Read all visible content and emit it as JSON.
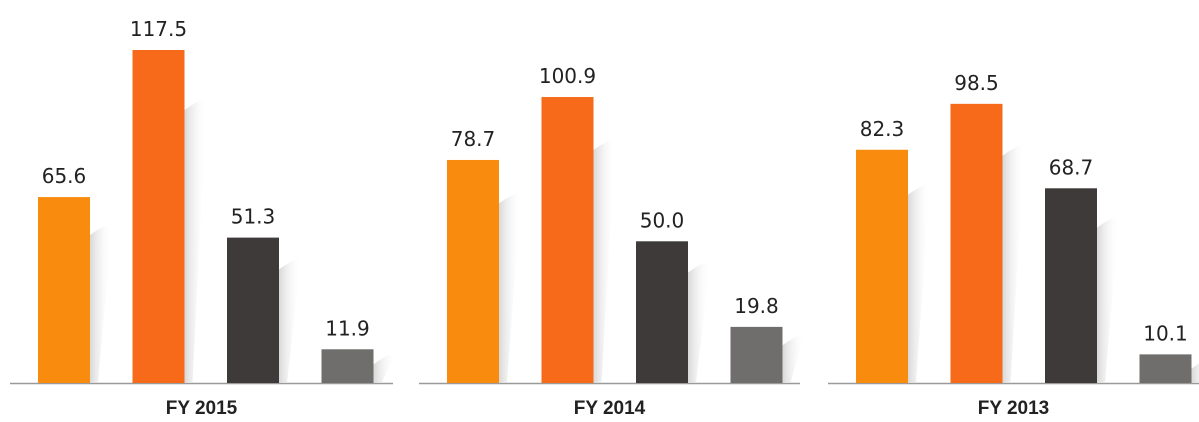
{
  "chart_data": [
    {
      "type": "bar",
      "title": "FY 2015",
      "categories": [
        null,
        null,
        null,
        null
      ],
      "values": [
        65.6,
        117.5,
        51.3,
        11.9
      ],
      "colors": [
        "#f98b0e",
        "#f66a19",
        "#3d3a39",
        "#6f6e6c"
      ]
    },
    {
      "type": "bar",
      "title": "FY 2014",
      "categories": [
        null,
        null,
        null,
        null
      ],
      "values": [
        78.7,
        100.9,
        50.0,
        19.8
      ],
      "value_labels": [
        "78.7",
        "100.9",
        "50.0",
        "19.8"
      ],
      "colors": [
        "#f98b0e",
        "#f66a19",
        "#3d3a39",
        "#6f6e6c"
      ]
    },
    {
      "type": "bar",
      "title": "FY 2013",
      "categories": [
        null,
        null,
        null,
        null
      ],
      "values": [
        82.3,
        98.5,
        68.7,
        10.1
      ],
      "colors": [
        "#f98b0e",
        "#f66a19",
        "#3d3a39",
        "#6f6e6c"
      ]
    }
  ]
}
